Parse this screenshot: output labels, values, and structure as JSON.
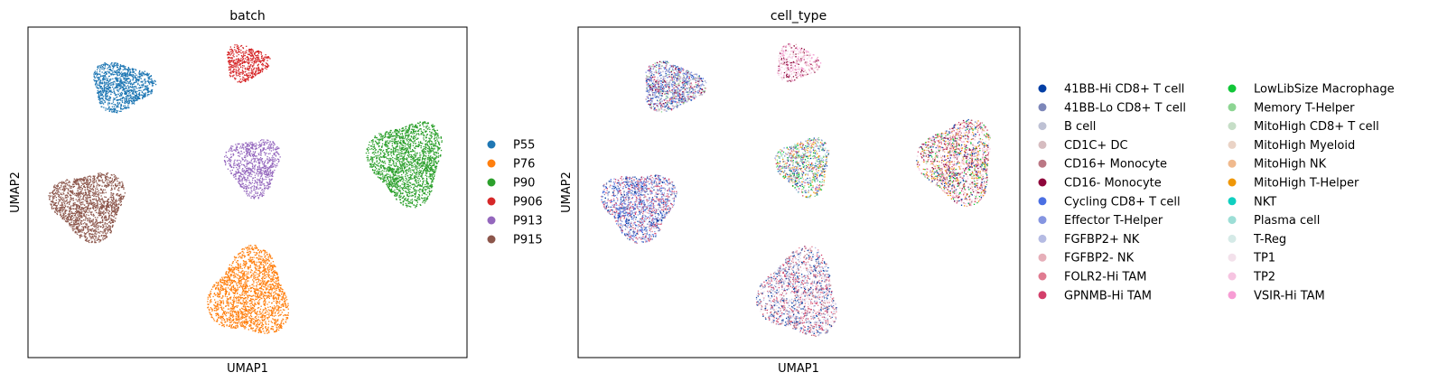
{
  "chart_data": [
    {
      "type": "scatter",
      "title": "batch",
      "xlabel": "UMAP1",
      "ylabel": "UMAP2",
      "grid": false,
      "legend_position": "right",
      "series": [
        {
          "name": "P55",
          "color": "#1f77b4"
        },
        {
          "name": "P76",
          "color": "#ff7f0e"
        },
        {
          "name": "P90",
          "color": "#2ca02c"
        },
        {
          "name": "P906",
          "color": "#d62728"
        },
        {
          "name": "P913",
          "color": "#9467bd"
        },
        {
          "name": "P915",
          "color": "#8c564b"
        }
      ]
    },
    {
      "type": "scatter",
      "title": "cell_type",
      "xlabel": "UMAP1",
      "ylabel": "UMAP2",
      "grid": false,
      "legend_position": "right",
      "series": [
        {
          "name": "41BB-Hi CD8+ T cell",
          "color": "#023fa5"
        },
        {
          "name": "41BB-Lo CD8+ T cell",
          "color": "#7d87b9"
        },
        {
          "name": "B cell",
          "color": "#bec1d4"
        },
        {
          "name": "CD1C+ DC",
          "color": "#d6bcc0"
        },
        {
          "name": "CD16+ Monocyte",
          "color": "#bb7784"
        },
        {
          "name": "CD16- Monocyte",
          "color": "#8e063b"
        },
        {
          "name": "Cycling CD8+ T cell",
          "color": "#4a6fe3"
        },
        {
          "name": "Effector T-Helper",
          "color": "#8595e1"
        },
        {
          "name": "FGFBP2+ NK",
          "color": "#b5bbe3"
        },
        {
          "name": "FGFBP2- NK",
          "color": "#e6afb9"
        },
        {
          "name": "FOLR2-Hi TAM",
          "color": "#e07b91"
        },
        {
          "name": "GPNMB-Hi TAM",
          "color": "#d33f6a"
        },
        {
          "name": "LowLibSize Macrophage",
          "color": "#11c638"
        },
        {
          "name": "Memory T-Helper",
          "color": "#8dd593"
        },
        {
          "name": "MitoHigh CD8+ T cell",
          "color": "#c6dec7"
        },
        {
          "name": "MitoHigh Myeloid",
          "color": "#ead3c6"
        },
        {
          "name": "MitoHigh NK",
          "color": "#f0b98d"
        },
        {
          "name": "MitoHigh T-Helper",
          "color": "#ef9708"
        },
        {
          "name": "NKT",
          "color": "#0fcfc0"
        },
        {
          "name": "Plasma cell",
          "color": "#9cded6"
        },
        {
          "name": "T-Reg",
          "color": "#d5eae7"
        },
        {
          "name": "TP1",
          "color": "#f3e1eb"
        },
        {
          "name": "TP2",
          "color": "#f6c4e1"
        },
        {
          "name": "VSIR-Hi TAM",
          "color": "#f79cd4"
        }
      ]
    }
  ]
}
